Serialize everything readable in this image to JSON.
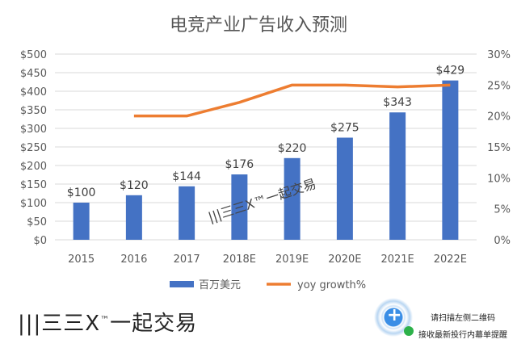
{
  "chart_data": {
    "type": "bar",
    "title": "电竞产业广告收入预测",
    "categories": [
      "2015",
      "2016",
      "2017",
      "2018E",
      "2019E",
      "2020E",
      "2021E",
      "2022E"
    ],
    "series": [
      {
        "name": "百万美元",
        "type": "bar",
        "axis": "left",
        "color": "#4472C4",
        "values": [
          100,
          120,
          144,
          176,
          220,
          275,
          343,
          429
        ],
        "labels": [
          "$100",
          "$120",
          "$144",
          "$176",
          "$220",
          "$275",
          "$343",
          "$429"
        ]
      },
      {
        "name": "yoy growth%",
        "type": "line",
        "axis": "right",
        "color": "#ED7D31",
        "values": [
          null,
          20,
          20,
          22.2,
          25,
          25,
          24.7,
          25
        ]
      }
    ],
    "left_axis": {
      "ylim": [
        0,
        500
      ],
      "ticks": [
        "$0",
        "$50",
        "$100",
        "$150",
        "$200",
        "$250",
        "$300",
        "$350",
        "$400",
        "$450",
        "$500"
      ]
    },
    "right_axis": {
      "ylim": [
        0,
        30
      ],
      "ticks": [
        "0%",
        "5%",
        "10%",
        "15%",
        "20%",
        "25%",
        "30%"
      ]
    },
    "grid": true,
    "legend": "bottom"
  },
  "watermark": "|||三三X™一起交易",
  "logo": "|||三三X™一起交易",
  "qr_text": {
    "line1": "请扫描左侧二维码",
    "line2": "接收最新投行内幕单提醒"
  }
}
